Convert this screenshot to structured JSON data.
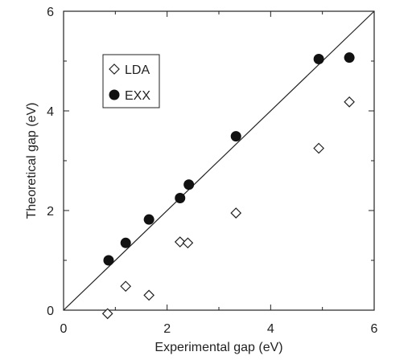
{
  "chart_data": {
    "type": "scatter",
    "title": "",
    "xlabel": "Experimental gap (eV)",
    "ylabel": "Theoretical gap (eV)",
    "xlim": [
      0,
      6
    ],
    "ylim": [
      0,
      6
    ],
    "xticks": [
      "0",
      "2",
      "4",
      "6"
    ],
    "yticks": [
      "0",
      "2",
      "4",
      "6"
    ],
    "grid": false,
    "legend_position": "top-left",
    "reference_line": "y = x",
    "series": [
      {
        "name": "LDA",
        "marker": "open-diamond",
        "color": "#222222",
        "x": [
          0.85,
          1.2,
          1.65,
          2.25,
          2.4,
          3.33,
          4.93,
          5.52
        ],
        "y": [
          -0.07,
          0.48,
          0.3,
          1.37,
          1.35,
          1.95,
          3.25,
          4.18
        ]
      },
      {
        "name": "EXX",
        "marker": "filled-circle",
        "color": "#111111",
        "x": [
          0.87,
          1.2,
          1.65,
          2.25,
          2.42,
          3.33,
          4.93,
          5.52
        ],
        "y": [
          1.0,
          1.35,
          1.82,
          2.25,
          2.52,
          3.49,
          5.04,
          5.07
        ]
      }
    ]
  }
}
